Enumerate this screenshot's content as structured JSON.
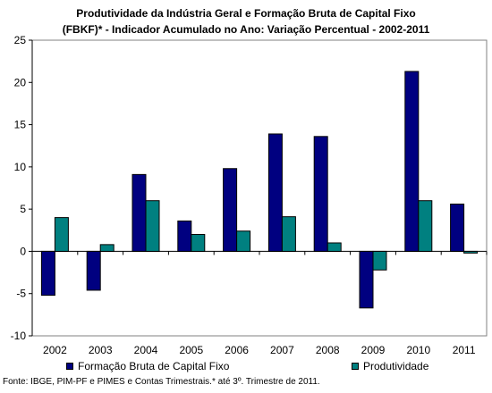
{
  "chart_data": {
    "type": "bar",
    "title": "Produtividade da Indústria Geral e Formação Bruta de Capital Fixo",
    "subtitle": "(FBKF)* - Indicador Acumulado no Ano: Variação Percentual - 2002-2011",
    "categories": [
      "2002",
      "2003",
      "2004",
      "2005",
      "2006",
      "2007",
      "2008",
      "2009",
      "2010",
      "2011"
    ],
    "series": [
      {
        "name": "Formação Bruta de Capital Fixo",
        "color": "#000080",
        "values": [
          -5.2,
          -4.6,
          9.1,
          3.6,
          9.8,
          13.9,
          13.6,
          -6.7,
          21.3,
          5.6
        ]
      },
      {
        "name": "Produtividade",
        "color": "#008080",
        "values": [
          4.0,
          0.8,
          6.0,
          2.0,
          2.4,
          4.1,
          1.0,
          -2.2,
          6.0,
          -0.2
        ]
      }
    ],
    "ylim": [
      -10,
      25
    ],
    "yticks": [
      -10,
      -5,
      0,
      5,
      10,
      15,
      20,
      25
    ],
    "grid": false,
    "legend_position": "bottom"
  },
  "footer": {
    "source": "Fonte: IBGE, PIM-PF e PIMES e Contas Trimestrais.* até 3º. Trimestre de 2011."
  }
}
